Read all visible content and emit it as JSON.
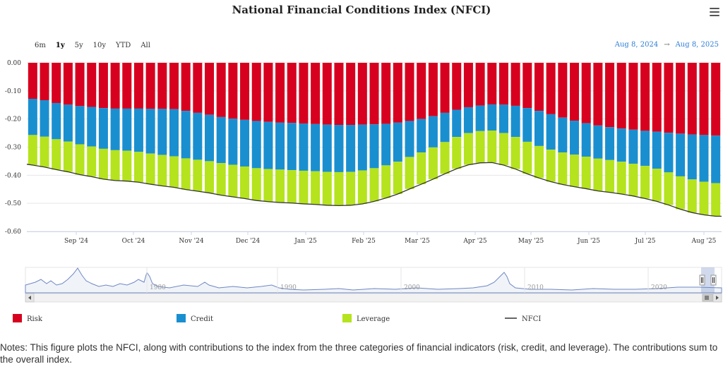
{
  "title": "National Financial Conditions Index (NFCI)",
  "menu_icon": "hamburger-menu-icon",
  "range_buttons": [
    "6m",
    "1y",
    "5y",
    "10y",
    "YTD",
    "All"
  ],
  "active_range": "1y",
  "date_from": "Aug 8, 2024",
  "date_arrow": "→",
  "date_to": "Aug 8, 2025",
  "notes": "Notes: This figure plots the NFCI, along with contributions to the index from the three categories of financial indicators (risk, credit, and leverage). The contributions sum to the overall index.",
  "colors": {
    "risk": "#d7001e",
    "credit": "#1a8fd0",
    "leverage": "#b5e31d",
    "nfci": "#333333"
  },
  "chart_data": {
    "type": "bar",
    "stacked": true,
    "ylim": [
      -0.6,
      0.0
    ],
    "yticks": [
      "0.00",
      "-0.10",
      "-0.20",
      "-0.30",
      "-0.40",
      "-0.50",
      "-0.60"
    ],
    "xticks": [
      "Sep '24",
      "Oct '24",
      "Nov '24",
      "Dec '24",
      "Jan '25",
      "Feb '25",
      "Mar '25",
      "Apr '25",
      "May '25",
      "Jun '25",
      "Jul '25",
      "Aug '25"
    ],
    "legend_position": "bottom",
    "series": [
      {
        "name": "Risk",
        "values": [
          -0.128,
          -0.133,
          -0.143,
          -0.149,
          -0.154,
          -0.157,
          -0.161,
          -0.163,
          -0.163,
          -0.163,
          -0.164,
          -0.164,
          -0.165,
          -0.171,
          -0.178,
          -0.185,
          -0.193,
          -0.199,
          -0.203,
          -0.207,
          -0.21,
          -0.213,
          -0.214,
          -0.216,
          -0.218,
          -0.22,
          -0.221,
          -0.221,
          -0.22,
          -0.219,
          -0.217,
          -0.213,
          -0.207,
          -0.2,
          -0.19,
          -0.178,
          -0.167,
          -0.158,
          -0.152,
          -0.148,
          -0.149,
          -0.153,
          -0.161,
          -0.171,
          -0.183,
          -0.195,
          -0.206,
          -0.215,
          -0.223,
          -0.229,
          -0.234,
          -0.238,
          -0.242,
          -0.245,
          -0.249,
          -0.252,
          -0.255,
          -0.257,
          -0.259
        ]
      },
      {
        "name": "Credit",
        "values": [
          -0.129,
          -0.13,
          -0.129,
          -0.131,
          -0.136,
          -0.141,
          -0.145,
          -0.148,
          -0.15,
          -0.154,
          -0.159,
          -0.164,
          -0.168,
          -0.169,
          -0.167,
          -0.165,
          -0.164,
          -0.164,
          -0.166,
          -0.168,
          -0.168,
          -0.167,
          -0.168,
          -0.168,
          -0.168,
          -0.168,
          -0.168,
          -0.167,
          -0.163,
          -0.156,
          -0.148,
          -0.139,
          -0.128,
          -0.119,
          -0.111,
          -0.104,
          -0.097,
          -0.092,
          -0.091,
          -0.093,
          -0.101,
          -0.111,
          -0.12,
          -0.125,
          -0.126,
          -0.124,
          -0.121,
          -0.119,
          -0.118,
          -0.117,
          -0.118,
          -0.121,
          -0.125,
          -0.132,
          -0.141,
          -0.152,
          -0.16,
          -0.166,
          -0.169
        ]
      },
      {
        "name": "Leverage",
        "values": [
          -0.107,
          -0.108,
          -0.108,
          -0.108,
          -0.108,
          -0.107,
          -0.108,
          -0.108,
          -0.108,
          -0.108,
          -0.109,
          -0.11,
          -0.11,
          -0.111,
          -0.112,
          -0.113,
          -0.114,
          -0.114,
          -0.114,
          -0.115,
          -0.116,
          -0.117,
          -0.117,
          -0.118,
          -0.118,
          -0.119,
          -0.119,
          -0.119,
          -0.119,
          -0.118,
          -0.116,
          -0.115,
          -0.114,
          -0.113,
          -0.113,
          -0.113,
          -0.113,
          -0.113,
          -0.113,
          -0.114,
          -0.114,
          -0.114,
          -0.114,
          -0.114,
          -0.114,
          -0.114,
          -0.114,
          -0.114,
          -0.115,
          -0.115,
          -0.115,
          -0.115,
          -0.116,
          -0.116,
          -0.116,
          -0.117,
          -0.118,
          -0.118,
          -0.118
        ]
      },
      {
        "name": "NFCI",
        "type": "line",
        "values": [
          -0.364,
          -0.371,
          -0.38,
          -0.388,
          -0.398,
          -0.405,
          -0.414,
          -0.419,
          -0.421,
          -0.425,
          -0.432,
          -0.438,
          -0.443,
          -0.451,
          -0.457,
          -0.463,
          -0.471,
          -0.477,
          -0.483,
          -0.49,
          -0.494,
          -0.497,
          -0.499,
          -0.502,
          -0.504,
          -0.507,
          -0.508,
          -0.507,
          -0.502,
          -0.493,
          -0.481,
          -0.467,
          -0.449,
          -0.432,
          -0.414,
          -0.395,
          -0.377,
          -0.363,
          -0.356,
          -0.355,
          -0.364,
          -0.378,
          -0.395,
          -0.41,
          -0.423,
          -0.433,
          -0.441,
          -0.448,
          -0.456,
          -0.461,
          -0.467,
          -0.474,
          -0.483,
          -0.493,
          -0.506,
          -0.521,
          -0.533,
          -0.541,
          -0.546
        ]
      }
    ]
  },
  "navigator": {
    "labels": [
      "1980",
      "1990",
      "2000",
      "2010",
      "2020"
    ]
  }
}
